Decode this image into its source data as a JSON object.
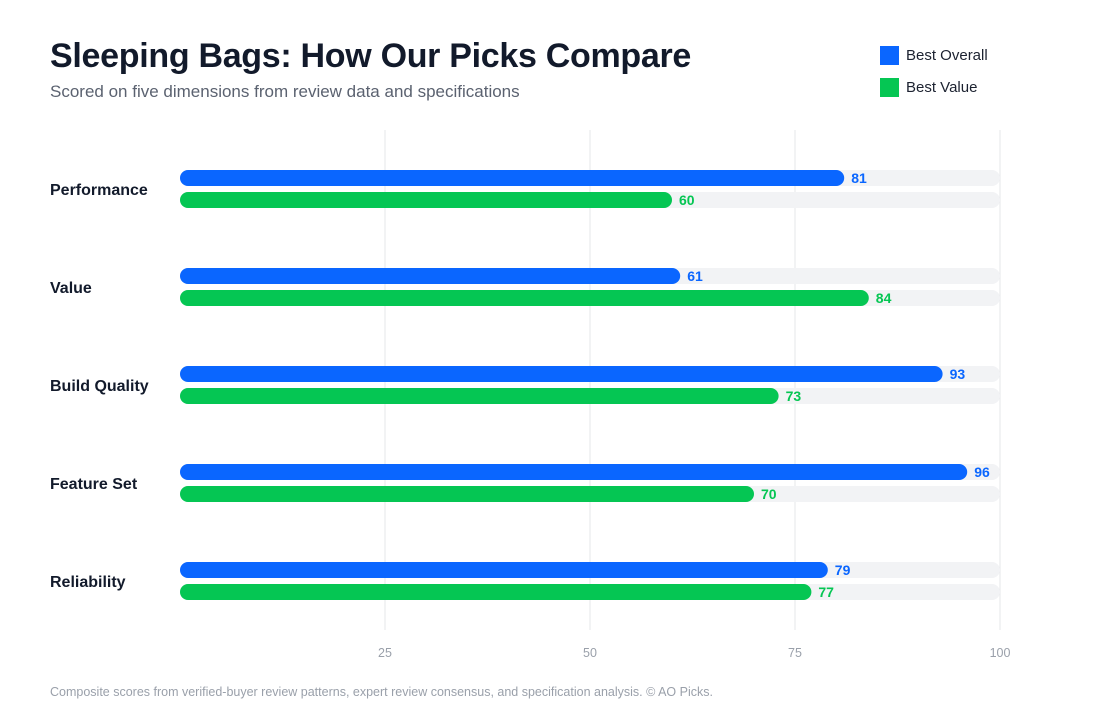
{
  "header": {
    "title": "Sleeping Bags: How Our Picks Compare",
    "subtitle": "Scored on five dimensions from review data and specifications"
  },
  "footer": {
    "note": "Composite scores from verified-buyer review patterns, expert review consensus, and specification analysis. © AO Picks."
  },
  "chart_data": {
    "type": "bar",
    "orientation": "horizontal",
    "categories": [
      "Performance",
      "Value",
      "Build Quality",
      "Feature Set",
      "Reliability"
    ],
    "series": [
      {
        "name": "Best Overall",
        "color": "#0a66ff",
        "values": [
          81,
          61,
          93,
          96,
          79
        ]
      },
      {
        "name": "Best Value",
        "color": "#05c653",
        "values": [
          60,
          84,
          73,
          70,
          77
        ]
      }
    ],
    "xlim": [
      0,
      100
    ],
    "xticks": [
      25,
      50,
      75,
      100
    ],
    "grid": true,
    "legend_position": "top-right",
    "track_color": "#f2f3f5",
    "grid_color": "#e6e7ea"
  }
}
